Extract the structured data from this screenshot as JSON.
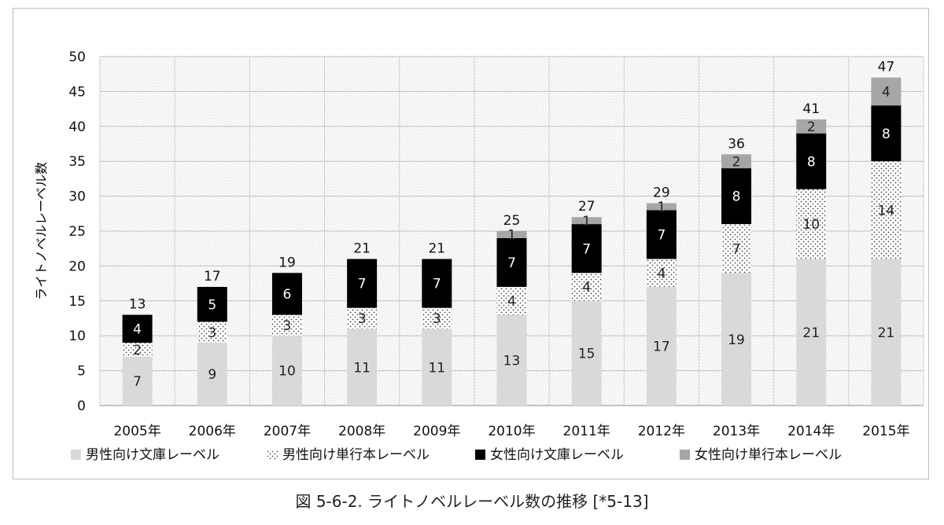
{
  "chart_data": {
    "type": "bar",
    "stacked": true,
    "ylabel": "ライトノベルレーベル数",
    "xlabel": "",
    "ylim": [
      0,
      50
    ],
    "yticks": [
      0,
      5,
      10,
      15,
      20,
      25,
      30,
      35,
      40,
      45,
      50
    ],
    "grid": true,
    "legend_position": "bottom",
    "categories": [
      "2005年",
      "2006年",
      "2007年",
      "2008年",
      "2009年",
      "2010年",
      "2011年",
      "2012年",
      "2013年",
      "2014年",
      "2015年"
    ],
    "series": [
      {
        "name": "男性向け文庫レーベル",
        "values": [
          7,
          9,
          10,
          11,
          11,
          13,
          15,
          17,
          19,
          21,
          21
        ],
        "color": "#d9d9d9",
        "pattern": "solid",
        "label_color": "#222222"
      },
      {
        "name": "男性向け単行本レーベル",
        "values": [
          2,
          3,
          3,
          3,
          3,
          4,
          4,
          4,
          7,
          10,
          14
        ],
        "color": "#ffffff",
        "pattern": "dots",
        "label_color": "#222222"
      },
      {
        "name": "女性向け文庫レーベル",
        "values": [
          4,
          5,
          6,
          7,
          7,
          7,
          7,
          7,
          8,
          8,
          8
        ],
        "color": "#000000",
        "pattern": "solid",
        "label_color": "#ffffff"
      },
      {
        "name": "女性向け単行本レーベル",
        "values": [
          0,
          0,
          0,
          0,
          0,
          1,
          1,
          1,
          2,
          2,
          4
        ],
        "color": "#a6a6a6",
        "pattern": "solid",
        "label_color": "#222222"
      }
    ],
    "totals": [
      13,
      17,
      19,
      21,
      21,
      25,
      27,
      29,
      36,
      41,
      47
    ]
  },
  "caption": "図 5-6-2.  ライトノベルレーベル数の推移 [*5-13]"
}
